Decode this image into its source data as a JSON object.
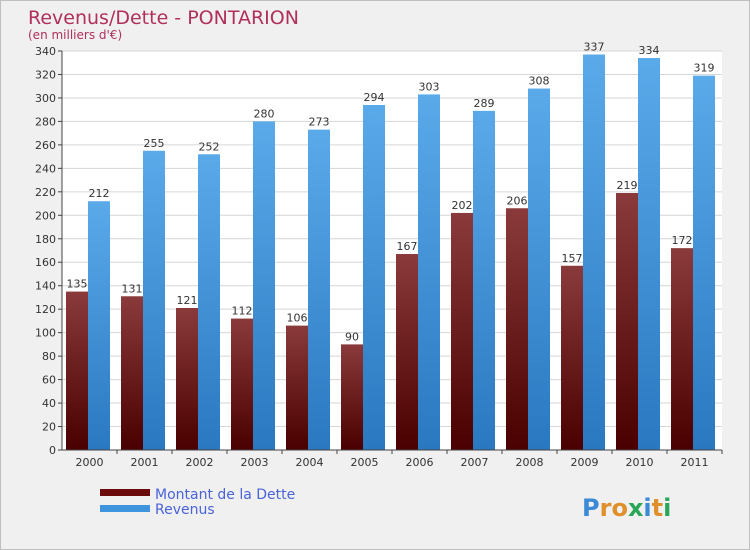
{
  "chart_data": {
    "type": "bar",
    "title": "Revenus/Dette - PONTARION",
    "subtitle": "(en milliers d'€)",
    "categories": [
      "2000",
      "2001",
      "2002",
      "2003",
      "2004",
      "2005",
      "2006",
      "2007",
      "2008",
      "2009",
      "2010",
      "2011"
    ],
    "series": [
      {
        "name": "Montant de la Dette",
        "values": [
          135,
          131,
          121,
          112,
          106,
          90,
          167,
          202,
          206,
          157,
          219,
          172
        ]
      },
      {
        "name": "Revenus",
        "values": [
          212,
          255,
          252,
          280,
          273,
          294,
          303,
          289,
          308,
          337,
          334,
          319
        ]
      }
    ],
    "ylim": [
      0,
      340
    ],
    "ytick_step": 20,
    "grid": true,
    "colors": {
      "debt_top": "#8a3a3a",
      "debt_bottom": "#4a0000",
      "rev_top": "#5aaaea",
      "rev_bottom": "#2a78c0",
      "legend_debt": "#6a0a0a",
      "legend_rev": "#3f94de"
    }
  },
  "logo": {
    "text": "Proxiti"
  }
}
